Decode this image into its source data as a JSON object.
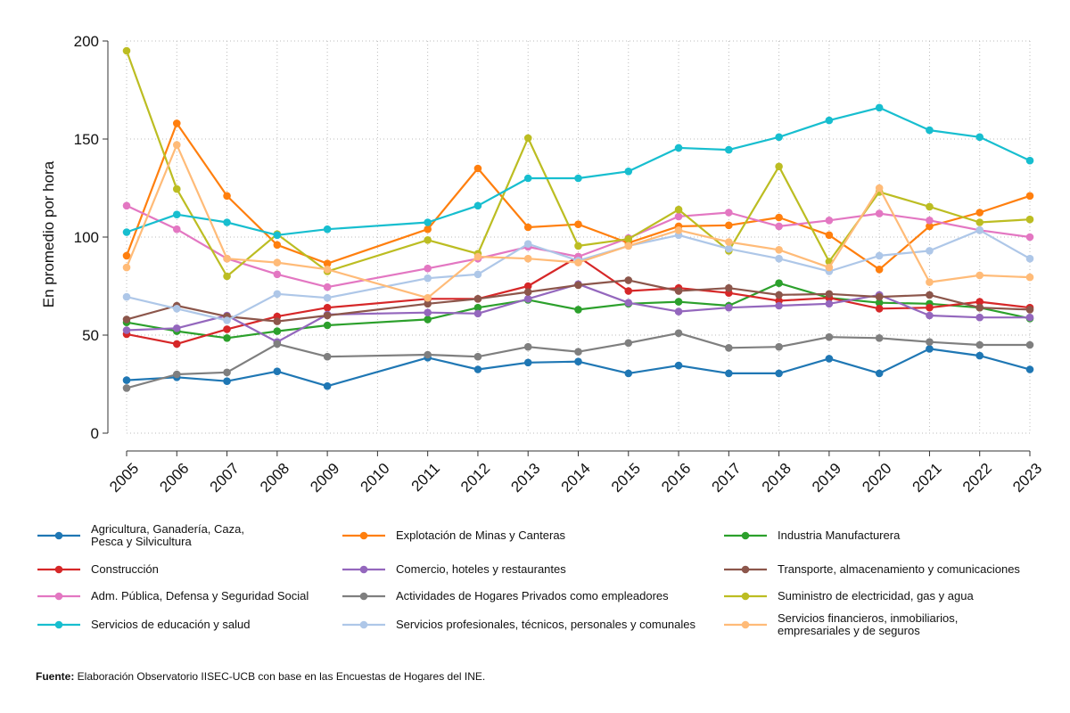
{
  "chart_data": {
    "type": "line",
    "ylabel": "En promedio por hora",
    "xlabel": "",
    "ylim": [
      0,
      200
    ],
    "yticks": [
      0,
      50,
      100,
      150,
      200
    ],
    "categories": [
      "2005",
      "2006",
      "2007",
      "2008",
      "2009",
      "2010",
      "2011",
      "2012",
      "2013",
      "2014",
      "2015",
      "2016",
      "2017",
      "2018",
      "2019",
      "2020",
      "2021",
      "2022",
      "2023"
    ],
    "grid": true,
    "legend_placement": "bottom",
    "series": [
      {
        "name": "Agricultura, Ganadería, Caza,\nPesca y Silvicultura",
        "color": "#1f77b4",
        "values": [
          27,
          28.5,
          26.5,
          31.5,
          24,
          null,
          38.5,
          32.5,
          36,
          36.5,
          30.5,
          34.5,
          30.5,
          30.5,
          38,
          30.5,
          43,
          39.5,
          32.5
        ]
      },
      {
        "name": "Explotación de Minas y Canteras",
        "color": "#ff7f0e",
        "values": [
          90.5,
          158,
          121,
          96,
          86.5,
          null,
          104,
          135,
          105,
          106.5,
          97,
          105.5,
          106,
          110,
          101,
          83.5,
          105.5,
          112.5,
          121
        ]
      },
      {
        "name": "Industria Manufacturera",
        "color": "#2ca02c",
        "values": [
          56.5,
          52,
          48.5,
          52,
          55,
          null,
          58,
          64,
          68,
          63,
          66,
          67,
          65,
          76.5,
          69,
          66.5,
          66,
          64,
          58.5
        ]
      },
      {
        "name": "Construcción",
        "color": "#d62728",
        "values": [
          50.5,
          45.5,
          53,
          59.5,
          64,
          null,
          68.5,
          68.5,
          75,
          90,
          72.5,
          74,
          71.5,
          67.5,
          69,
          63.5,
          64,
          67,
          64
        ]
      },
      {
        "name": "Comercio, hoteles y restaurantes",
        "color": "#9467bd",
        "values": [
          52.5,
          53.5,
          60,
          46.5,
          60.5,
          null,
          61.5,
          61,
          68.5,
          76,
          66.5,
          62,
          64,
          65,
          66,
          70.5,
          60,
          59,
          59
        ]
      },
      {
        "name": "Transporte, almacenamiento y comunicaciones",
        "color": "#8c564b",
        "values": [
          58,
          65,
          59.5,
          57,
          60,
          null,
          66,
          68.5,
          72,
          75.5,
          78,
          72.5,
          74,
          70.5,
          71,
          69.5,
          70.5,
          64,
          63
        ]
      },
      {
        "name": "Adm. Pública, Defensa y Seguridad Social",
        "color": "#e377c2",
        "values": [
          116,
          104,
          89,
          81,
          74.5,
          null,
          84,
          89,
          95,
          90,
          99.5,
          110.5,
          112.5,
          105.5,
          108.5,
          112,
          108.5,
          103.5,
          100
        ]
      },
      {
        "name": "Actividades de Hogares Privados como empleadores",
        "color": "#7f7f7f",
        "values": [
          23,
          30,
          31,
          45.5,
          39,
          null,
          40,
          39,
          44,
          41.5,
          46,
          51,
          43.5,
          44,
          49,
          48.5,
          46.5,
          45,
          45
        ]
      },
      {
        "name": "Suministro de electricidad, gas y agua",
        "color": "#bcbd22",
        "values": [
          195,
          124.5,
          80,
          101.5,
          82.5,
          null,
          98.5,
          91.5,
          150.5,
          95.5,
          99,
          114,
          93,
          136,
          87.5,
          123,
          115.5,
          107.5,
          109
        ]
      },
      {
        "name": "Servicios de educación y salud",
        "color": "#17becf",
        "values": [
          102.5,
          111.5,
          107.5,
          101,
          104,
          null,
          107.5,
          116,
          130,
          130,
          133.5,
          145.5,
          144.5,
          151,
          159.5,
          166,
          154.5,
          151,
          139
        ]
      },
      {
        "name": "Servicios profesionales, técnicos, personales y comunales",
        "color": "#aec7e8",
        "values": [
          69.5,
          63.5,
          57.5,
          71,
          69,
          null,
          79,
          81,
          96.5,
          88,
          95.5,
          101,
          94,
          89,
          82.5,
          90.5,
          93,
          103.5,
          89
        ]
      },
      {
        "name": "Servicios financieros, inmobiliarios,\nempresariales y de seguros",
        "color": "#ffbb78",
        "values": [
          84.5,
          147,
          89,
          87,
          83.5,
          null,
          69,
          90,
          89,
          87,
          95.5,
          103.5,
          97.5,
          93.5,
          84.5,
          125,
          77,
          80.5,
          79.5
        ]
      }
    ]
  },
  "legend_order": [
    0,
    1,
    2,
    3,
    4,
    5,
    6,
    7,
    8,
    9,
    10,
    11
  ],
  "source": {
    "label": "Fuente:",
    "text": " Elaboración Observatorio IISEC-UCB con base en las Encuestas de Hogares del INE."
  }
}
